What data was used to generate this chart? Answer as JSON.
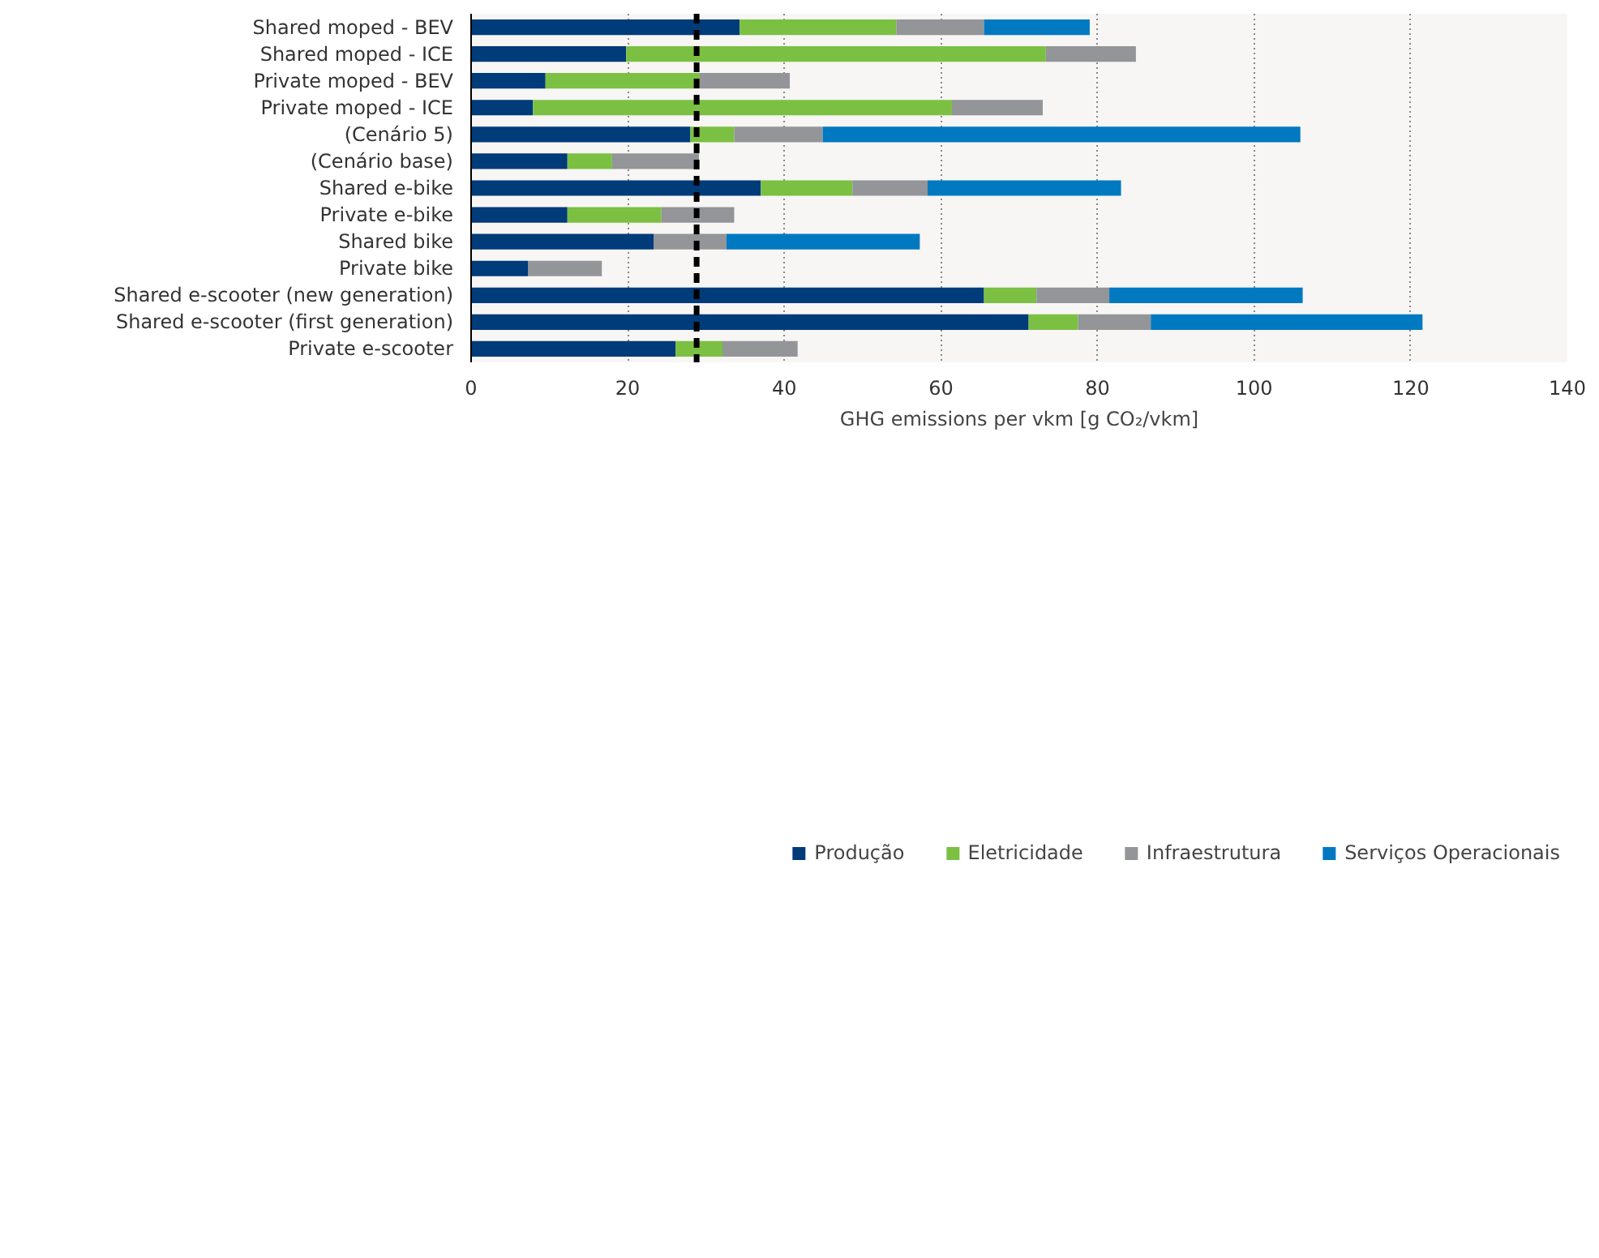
{
  "chart_data": {
    "type": "bar",
    "orientation": "horizontal",
    "stacked": true,
    "xlabel": "GHG emissions per vkm [g CO₂/vkm]",
    "categories": [
      "Shared moped - BEV",
      "Shared moped - ICE",
      "Private moped - BEV",
      "Private moped - ICE",
      "(Cenário 5)",
      "(Cenário base)",
      "Shared e-bike",
      "Private e-bike",
      "Shared bike",
      "Private bike",
      "Shared e-scooter (new generation)",
      "Shared e-scooter (first generation)",
      "Private e-scooter"
    ],
    "series": [
      {
        "name": "Produção",
        "color": "#003b7a",
        "values": [
          34.3,
          19.8,
          9.5,
          7.9,
          28.0,
          12.3,
          37.0,
          12.3,
          23.3,
          7.3,
          65.5,
          71.2,
          26.1
        ]
      },
      {
        "name": "Eletricidade",
        "color": "#7bc043",
        "values": [
          20.0,
          53.6,
          19.7,
          53.5,
          5.6,
          5.7,
          11.7,
          12.0,
          null,
          null,
          6.7,
          6.3,
          6.0
        ]
      },
      {
        "name": "Infraestrutura",
        "color": "#939598",
        "values": [
          11.2,
          11.5,
          11.5,
          11.6,
          11.3,
          11.1,
          9.6,
          9.3,
          9.3,
          9.4,
          9.3,
          9.3,
          9.6
        ]
      },
      {
        "name": "Serviços Operacionais",
        "color": "#0079c1",
        "values": [
          13.5,
          null,
          null,
          null,
          61.0,
          null,
          24.7,
          null,
          24.7,
          null,
          24.7,
          34.7,
          null
        ]
      }
    ],
    "xlim": [
      0,
      140
    ],
    "xticks": [
      0,
      20,
      40,
      60,
      80,
      100,
      120,
      140
    ],
    "grid": "x",
    "legend": "bottom",
    "ref_lines": [
      {
        "axis": "x",
        "value": 28.8,
        "color": "#000000",
        "line_style": "dashed"
      }
    ]
  }
}
